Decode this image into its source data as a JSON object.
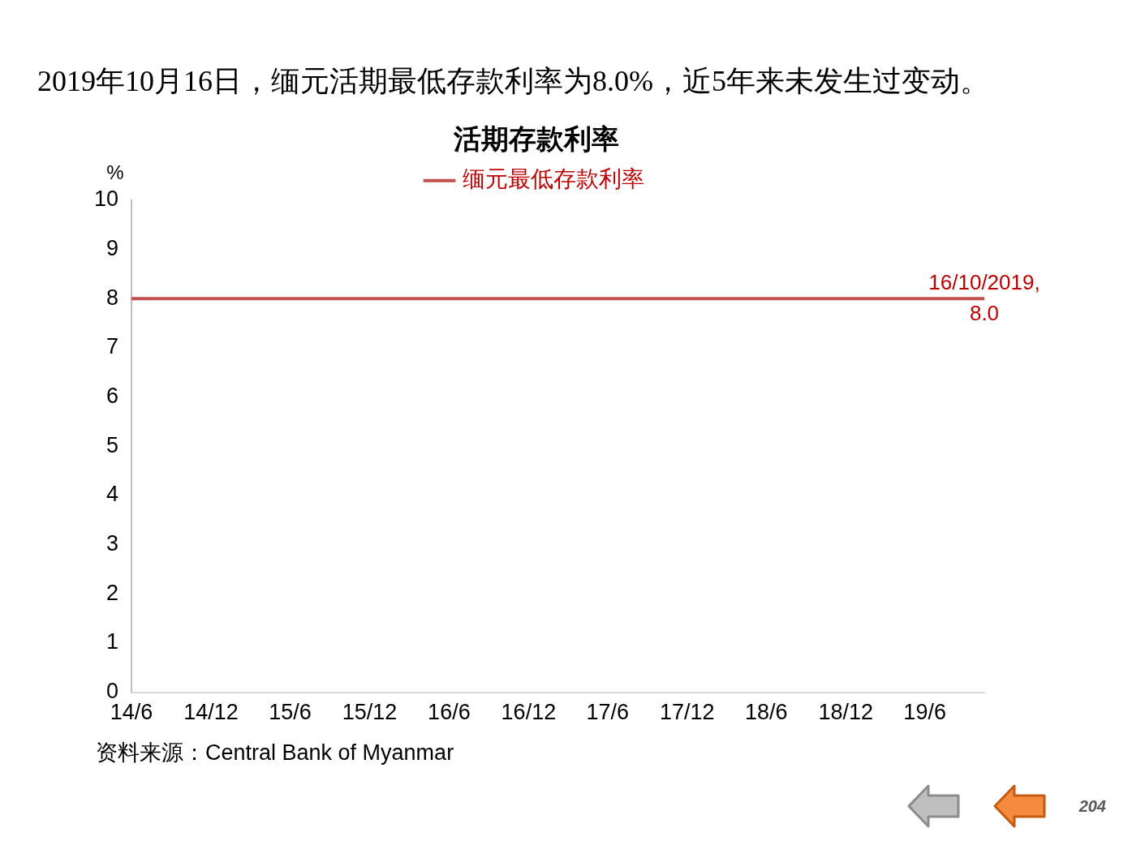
{
  "chart_data": {
    "type": "line",
    "title": "2019年10月16日，缅元活期最低存款利率为8.0%，近5年来未发生过变动。",
    "subtitle": "活期存款利率",
    "ylabel": "%",
    "x": [
      "2014-06-01",
      "2019-10-16"
    ],
    "series": [
      {
        "name": "缅元最低存款利率",
        "color": "#c0504d",
        "values": [
          8.0,
          8.0
        ]
      }
    ],
    "xlim": [
      "2014-06-01",
      "2019-10-16"
    ],
    "xticks": [
      {
        "value": "2014-06-01",
        "label": "14/6"
      },
      {
        "value": "2014-12-01",
        "label": "14/12"
      },
      {
        "value": "2015-06-01",
        "label": "15/6"
      },
      {
        "value": "2015-12-01",
        "label": "15/12"
      },
      {
        "value": "2016-06-01",
        "label": "16/6"
      },
      {
        "value": "2016-12-01",
        "label": "16/12"
      },
      {
        "value": "2017-06-01",
        "label": "17/6"
      },
      {
        "value": "2017-12-01",
        "label": "17/12"
      },
      {
        "value": "2018-06-01",
        "label": "18/6"
      },
      {
        "value": "2018-12-01",
        "label": "18/12"
      },
      {
        "value": "2019-06-01",
        "label": "19/6"
      }
    ],
    "ylim": [
      0,
      10
    ],
    "yticks": [
      0,
      1,
      2,
      3,
      4,
      5,
      6,
      7,
      8,
      9,
      10
    ],
    "grid": false,
    "legend": "top",
    "marker": "none",
    "line_style": "solid",
    "annotations": [
      {
        "text": "16/10/2019, 8.0",
        "x": "2019-10-16",
        "y": 8
      },
      "资料来源：Central Bank of Myanmar",
      "204"
    ]
  }
}
